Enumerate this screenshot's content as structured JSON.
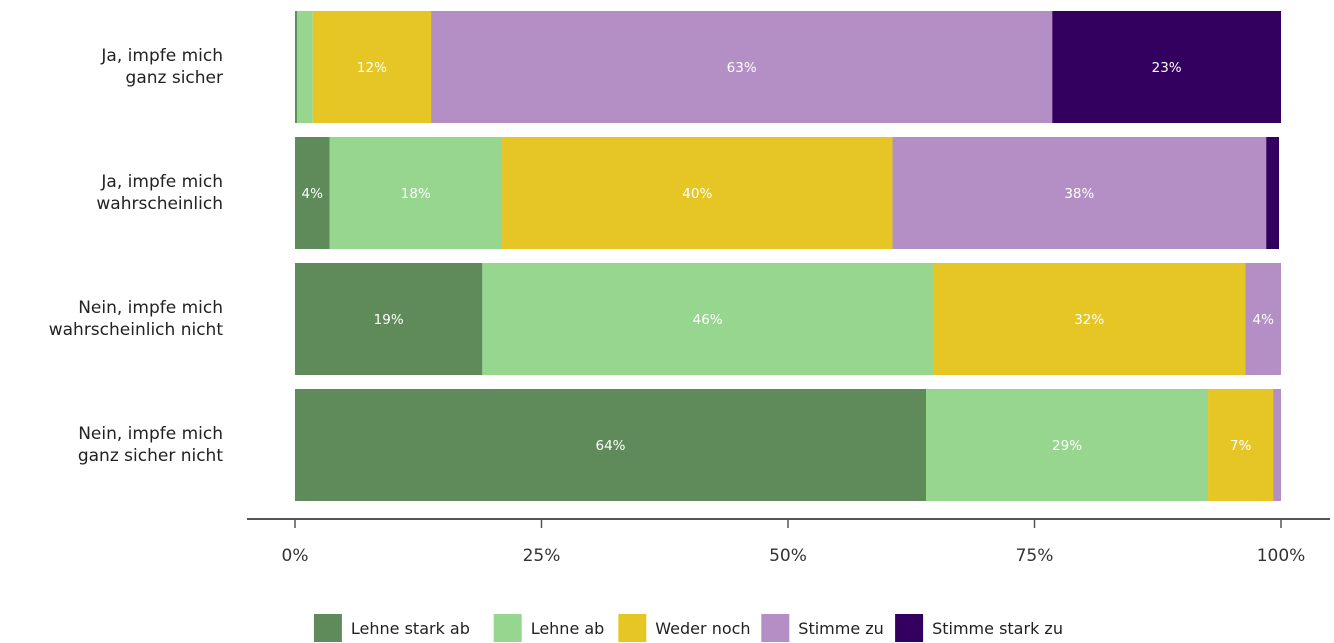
{
  "chart_data": {
    "type": "bar",
    "orientation": "horizontal",
    "stacked": true,
    "title": "",
    "xlabel": "",
    "ylabel": "",
    "xlim": [
      0,
      100
    ],
    "xticks": [
      "0%",
      "25%",
      "50%",
      "75%",
      "100%"
    ],
    "grid": false,
    "legend_position": "bottom",
    "categories": [
      [
        "Ja, impfe mich",
        "ganz sicher"
      ],
      [
        "Ja, impfe mich",
        "wahrscheinlich"
      ],
      [
        "Nein, impfe mich",
        "wahrscheinlich nicht"
      ],
      [
        "Nein, impfe mich",
        "ganz sicher nicht"
      ]
    ],
    "series": [
      {
        "name": "Lehne stark ab",
        "color": "#5f8a59",
        "values": [
          0.2,
          3.5,
          19,
          64
        ]
      },
      {
        "name": "Lehne ab",
        "color": "#97d68e",
        "values": [
          1.6,
          17.5,
          45.7,
          28.6
        ]
      },
      {
        "name": "Weder noch",
        "color": "#e5c625",
        "values": [
          12,
          39.6,
          31.7,
          6.6
        ]
      },
      {
        "name": "Stimme zu",
        "color": "#b38fc6",
        "values": [
          63,
          37.9,
          3.6,
          0.8
        ]
      },
      {
        "name": "Stimme stark zu",
        "color": "#33005f",
        "values": [
          23.2,
          1.3,
          0,
          0
        ]
      }
    ],
    "data_labels": [
      [
        "",
        "",
        "12%",
        "63%",
        "23%"
      ],
      [
        "4%",
        "18%",
        "40%",
        "38%",
        ""
      ],
      [
        "19%",
        "46%",
        "32%",
        "4%",
        ""
      ],
      [
        "64%",
        "29%",
        "7%",
        "",
        ""
      ]
    ]
  }
}
